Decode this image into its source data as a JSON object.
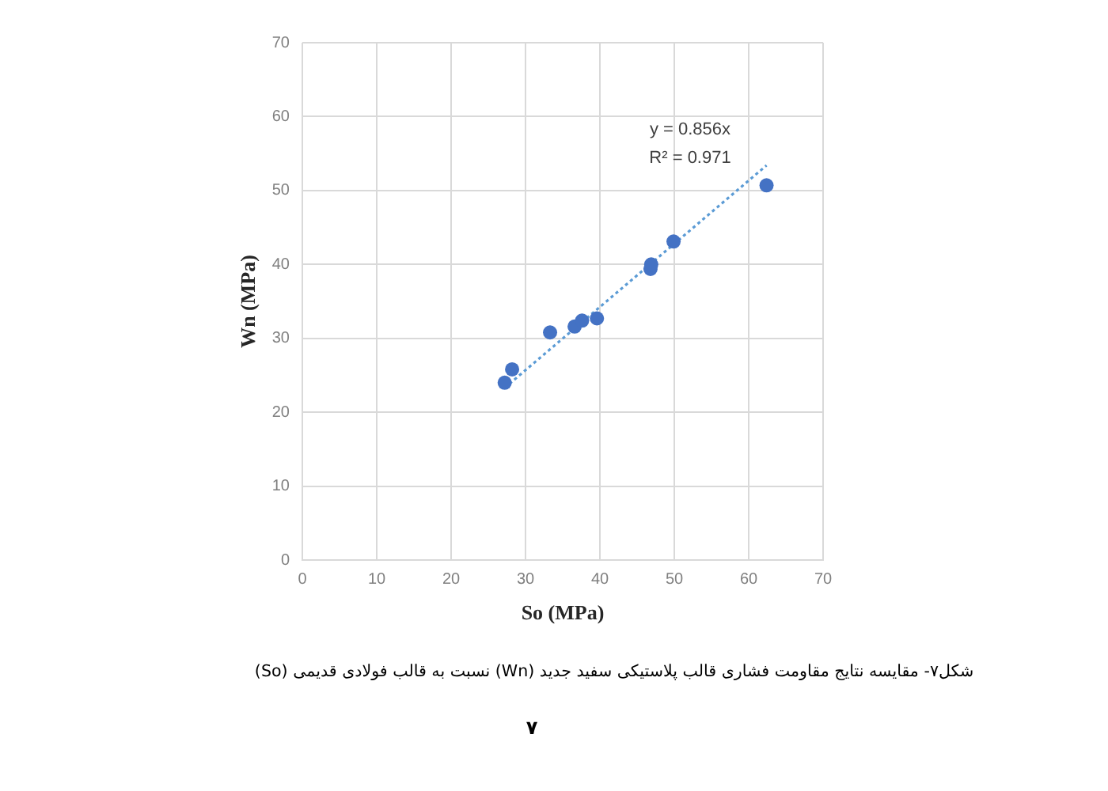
{
  "chart_data": {
    "type": "scatter",
    "xlabel": "So (MPa)",
    "ylabel": "Wn (MPa)",
    "series": [
      {
        "color": "#4472c4",
        "x": [
          27.2,
          28.2,
          33.3,
          36.6,
          37.6,
          39.6,
          46.8,
          46.9,
          49.9,
          62.4
        ],
        "values": [
          24.0,
          25.8,
          30.8,
          31.6,
          32.4,
          32.7,
          39.4,
          40.0,
          43.1,
          50.7
        ]
      },
      {
        "type": "line",
        "color": "#5b9bd5",
        "line_style": "dotted",
        "marker": "none",
        "x": [
          27.2,
          62.4
        ],
        "values": [
          23.3,
          53.4
        ]
      }
    ],
    "xlim": [
      0,
      70
    ],
    "ylim": [
      0,
      70
    ],
    "xticks": [
      0,
      10,
      20,
      30,
      40,
      50,
      60,
      70
    ],
    "yticks": [
      0,
      10,
      20,
      30,
      40,
      50,
      60,
      70
    ],
    "grid": true,
    "marker": "circle",
    "annotations": [
      "y = 0.856x",
      "R² = 0.971",
      "شکل۷- مقایسه نتایج مقاومت فشاری قالب پلاستیکی سفید جدید (Wn) نسبت به قالب فولادی قدیمی (So)",
      "۷"
    ]
  }
}
